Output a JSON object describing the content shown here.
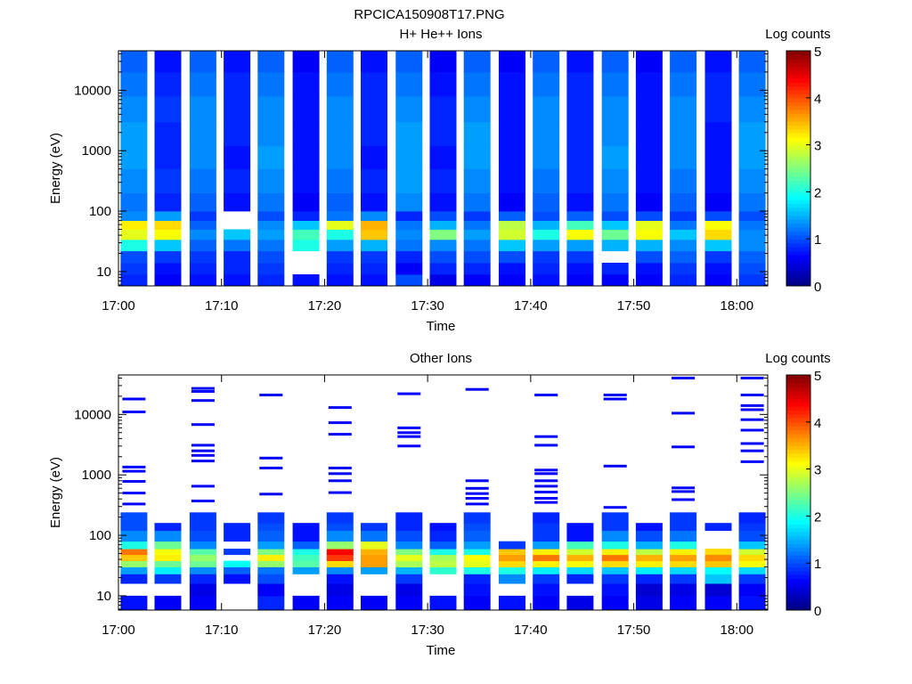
{
  "figure": {
    "title": "RPCICA150908T17.PNG",
    "colors": {
      "empty": "#ffffff",
      "axis": "#000000"
    }
  },
  "chart_data": [
    {
      "type": "heatmap",
      "title": "H+ He++ Ions",
      "xlabel": "Time",
      "ylabel": "Energy (eV)",
      "colorbar_label": "Log counts",
      "x_ticks": [
        "17:00",
        "17:10",
        "17:20",
        "17:30",
        "17:40",
        "17:50",
        "18:00"
      ],
      "x_range_minutes": [
        0,
        63
      ],
      "y_scale": "log",
      "y_range": [
        5.8,
        45000
      ],
      "y_ticks": [
        10,
        100,
        1000,
        10000
      ],
      "y_tick_labels": [
        "10",
        "100",
        "1000",
        "10000"
      ],
      "colorbar_range": [
        0,
        5
      ],
      "colorbar_ticks": [
        "0",
        "1",
        "2",
        "3",
        "4",
        "5"
      ],
      "colormap": "jet",
      "time_columns_minutes": [
        1.5,
        4.8,
        8.2,
        11.5,
        14.8,
        18.2,
        21.5,
        24.8,
        28.2,
        31.5,
        34.8,
        38.2,
        41.5,
        44.8,
        48.2,
        51.5,
        54.8,
        58.2,
        61.5
      ],
      "row_data": [
        {
          "energy_range": [
            5.8,
            9
          ],
          "values": [
            0.8,
            0.6,
            0.7,
            0.7,
            0.8,
            0.7,
            0.7,
            0.7,
            1.0,
            0.5,
            0.6,
            0.6,
            0.7,
            0.6,
            0.6,
            0.6,
            0.8,
            0.6,
            0.9
          ]
        },
        {
          "energy_range": [
            9,
            14
          ],
          "values": [
            0.9,
            0.7,
            0.8,
            0.8,
            0.9,
            null,
            0.8,
            0.8,
            0.6,
            0.8,
            0.8,
            0.7,
            0.8,
            0.7,
            0.8,
            0.7,
            0.9,
            0.7,
            1.0
          ]
        },
        {
          "energy_range": [
            14,
            22
          ],
          "values": [
            1.0,
            0.9,
            0.9,
            0.8,
            1.0,
            null,
            0.9,
            0.9,
            0.8,
            1.0,
            1.0,
            1.0,
            0.9,
            0.9,
            null,
            1.0,
            1.1,
            0.9,
            1.1
          ]
        },
        {
          "energy_range": [
            22,
            34
          ],
          "values": [
            2.0,
            1.6,
            1.1,
            1.2,
            1.2,
            2.0,
            1.4,
            1.5,
            1.2,
            1.3,
            1.2,
            1.6,
            1.4,
            1.4,
            1.5,
            1.5,
            1.3,
            1.6,
            1.3
          ]
        },
        {
          "energy_range": [
            34,
            50
          ],
          "values": [
            3.0,
            3.1,
            1.3,
            1.6,
            1.4,
            2.2,
            2.0,
            3.4,
            1.3,
            2.5,
            1.4,
            2.9,
            2.0,
            3.1,
            2.4,
            3.1,
            1.6,
            3.3,
            1.3
          ]
        },
        {
          "energy_range": [
            50,
            70
          ],
          "values": [
            3.2,
            3.3,
            1.1,
            null,
            1.3,
            1.6,
            3.0,
            3.5,
            1.2,
            1.5,
            1.2,
            2.8,
            1.5,
            2.2,
            1.6,
            3.0,
            1.2,
            3.1,
            1.2
          ]
        },
        {
          "energy_range": [
            70,
            100
          ],
          "values": [
            1.3,
            1.4,
            0.9,
            null,
            1.0,
            0.8,
            1.2,
            1.3,
            0.8,
            1.0,
            0.9,
            1.1,
            1.0,
            1.1,
            1.0,
            1.0,
            0.9,
            1.0,
            1.0
          ]
        },
        {
          "energy_range": [
            100,
            200
          ],
          "values": [
            1.2,
            0.8,
            1.1,
            0.7,
            1.2,
            0.6,
            1.1,
            0.7,
            1.3,
            0.7,
            1.2,
            0.6,
            1.1,
            0.7,
            1.2,
            0.6,
            1.1,
            0.6,
            1.2
          ]
        },
        {
          "energy_range": [
            200,
            500
          ],
          "values": [
            1.3,
            0.9,
            1.2,
            0.8,
            1.3,
            0.7,
            1.2,
            0.8,
            1.4,
            0.8,
            1.3,
            0.7,
            1.2,
            0.8,
            1.3,
            0.7,
            1.2,
            0.7,
            1.3
          ]
        },
        {
          "energy_range": [
            500,
            1200
          ],
          "values": [
            1.4,
            0.8,
            1.3,
            0.7,
            1.4,
            0.7,
            1.3,
            0.7,
            1.4,
            0.7,
            1.4,
            0.7,
            1.3,
            0.8,
            1.4,
            0.7,
            1.3,
            0.7,
            1.4
          ]
        },
        {
          "energy_range": [
            1200,
            3000
          ],
          "values": [
            1.4,
            0.8,
            1.3,
            0.8,
            1.3,
            0.7,
            1.3,
            0.8,
            1.4,
            0.8,
            1.4,
            0.7,
            1.3,
            0.8,
            1.3,
            0.7,
            1.3,
            0.7,
            1.4
          ]
        },
        {
          "energy_range": [
            3000,
            8000
          ],
          "values": [
            1.3,
            0.9,
            1.3,
            0.8,
            1.3,
            0.7,
            1.3,
            0.8,
            1.3,
            0.8,
            1.3,
            0.7,
            1.3,
            0.8,
            1.3,
            0.7,
            1.3,
            0.8,
            1.3
          ]
        },
        {
          "energy_range": [
            8000,
            20000
          ],
          "values": [
            1.2,
            0.8,
            1.2,
            0.8,
            1.2,
            0.7,
            1.2,
            0.8,
            1.2,
            0.7,
            1.2,
            0.7,
            1.2,
            0.8,
            1.2,
            0.7,
            1.2,
            0.8,
            1.2
          ]
        },
        {
          "energy_range": [
            20000,
            45000
          ],
          "values": [
            1.1,
            0.7,
            1.1,
            0.7,
            1.1,
            0.6,
            1.1,
            0.7,
            1.1,
            0.6,
            1.1,
            0.6,
            1.1,
            0.7,
            1.1,
            0.6,
            1.1,
            0.7,
            1.1
          ]
        }
      ]
    },
    {
      "type": "heatmap",
      "title": "Other Ions",
      "xlabel": "Time",
      "ylabel": "Energy (eV)",
      "colorbar_label": "Log counts",
      "x_ticks": [
        "17:00",
        "17:10",
        "17:20",
        "17:30",
        "17:40",
        "17:50",
        "18:00"
      ],
      "x_range_minutes": [
        0,
        63
      ],
      "y_scale": "log",
      "y_range": [
        5.8,
        45000
      ],
      "y_ticks": [
        10,
        100,
        1000,
        10000
      ],
      "y_tick_labels": [
        "10",
        "100",
        "1000",
        "10000"
      ],
      "colorbar_range": [
        0,
        5
      ],
      "colorbar_ticks": [
        "0",
        "1",
        "2",
        "3",
        "4",
        "5"
      ],
      "colormap": "jet",
      "time_columns_minutes": [
        1.5,
        4.8,
        8.2,
        11.5,
        14.8,
        18.2,
        21.5,
        24.8,
        28.2,
        31.5,
        34.8,
        38.2,
        41.5,
        44.8,
        48.2,
        51.5,
        54.8,
        58.2,
        61.5
      ],
      "row_data": [
        {
          "energy_range": [
            5.8,
            10
          ],
          "values": [
            0.7,
            0.6,
            0.6,
            null,
            0.8,
            0.6,
            0.6,
            0.6,
            0.6,
            0.7,
            0.6,
            0.7,
            0.6,
            0.5,
            0.6,
            0.5,
            0.6,
            0.6,
            0.7
          ]
        },
        {
          "energy_range": [
            10,
            16
          ],
          "values": [
            null,
            null,
            0.5,
            null,
            0.6,
            null,
            0.5,
            null,
            0.5,
            null,
            0.7,
            null,
            0.7,
            null,
            0.7,
            0.4,
            0.5,
            0.4,
            0.6
          ]
        },
        {
          "energy_range": [
            16,
            23
          ],
          "values": [
            0.8,
            0.9,
            0.8,
            0.7,
            1.0,
            null,
            0.7,
            null,
            0.9,
            null,
            0.8,
            1.3,
            0.9,
            0.8,
            0.9,
            0.8,
            0.9,
            1.6,
            0.9
          ]
        },
        {
          "energy_range": [
            23,
            30
          ],
          "values": [
            1.4,
            1.8,
            1.3,
            1.1,
            1.2,
            1.4,
            1.3,
            1.4,
            1.5,
            2.1,
            2.0,
            2.0,
            1.8,
            1.7,
            1.6,
            1.8,
            1.7,
            1.9,
            1.7
          ]
        },
        {
          "energy_range": [
            30,
            38
          ],
          "values": [
            2.6,
            2.4,
            2.4,
            1.9,
            2.6,
            2.3,
            3.3,
            3.6,
            2.7,
            2.8,
            3.0,
            3.3,
            3.2,
            3.1,
            3.3,
            3.2,
            3.3,
            3.4,
            3.1
          ]
        },
        {
          "energy_range": [
            38,
            48
          ],
          "values": [
            3.4,
            3.2,
            2.6,
            null,
            3.2,
            2.2,
            4.1,
            3.6,
            3.0,
            2.7,
            3.1,
            3.6,
            3.8,
            3.5,
            3.8,
            3.5,
            3.6,
            3.7,
            3.3
          ]
        },
        {
          "energy_range": [
            48,
            60
          ],
          "values": [
            3.8,
            3.1,
            2.3,
            0.9,
            2.5,
            2.0,
            4.4,
            3.5,
            2.5,
            2.0,
            2.0,
            3.4,
            3.2,
            2.9,
            3.2,
            2.8,
            3.2,
            3.3,
            2.9
          ]
        },
        {
          "energy_range": [
            60,
            80
          ],
          "values": [
            2.0,
            2.4,
            1.3,
            null,
            1.4,
            1.1,
            2.6,
            3.0,
            1.3,
            1.1,
            1.4,
            0.9,
            1.4,
            2.2,
            2.0,
            1.5,
            2.0,
            null,
            1.6
          ]
        },
        {
          "energy_range": [
            80,
            120
          ],
          "values": [
            1.3,
            1.3,
            1.0,
            0.8,
            1.1,
            0.7,
            1.3,
            1.2,
            1.0,
            0.8,
            1.1,
            null,
            0.9,
            0.7,
            1.3,
            1.0,
            1.2,
            null,
            1.0
          ]
        },
        {
          "energy_range": [
            120,
            160
          ],
          "values": [
            1.0,
            0.8,
            0.9,
            0.8,
            1.0,
            0.7,
            1.0,
            0.9,
            0.8,
            0.7,
            1.0,
            null,
            0.9,
            0.7,
            0.9,
            0.7,
            0.9,
            0.8,
            0.9
          ]
        },
        {
          "energy_range": [
            160,
            240
          ],
          "values": [
            1.0,
            null,
            0.9,
            null,
            0.9,
            null,
            0.9,
            null,
            0.8,
            null,
            0.9,
            null,
            0.8,
            null,
            0.9,
            null,
            0.9,
            null,
            0.8
          ]
        }
      ],
      "line_data": [
        {
          "time_minute": 1.5,
          "energies": [
            18000,
            11000,
            1350,
            1150,
            780,
            500,
            330
          ]
        },
        {
          "time_minute": 8.2,
          "energies": [
            27000,
            24000,
            17000,
            6800,
            3100,
            2500,
            2100,
            1700,
            650,
            370
          ]
        },
        {
          "time_minute": 14.8,
          "energies": [
            21000,
            1900,
            1300,
            480
          ]
        },
        {
          "time_minute": 21.5,
          "energies": [
            13000,
            7300,
            4700,
            1300,
            1050,
            800,
            510
          ]
        },
        {
          "time_minute": 28.2,
          "energies": [
            22000,
            6000,
            5000,
            4300,
            3000
          ]
        },
        {
          "time_minute": 34.8,
          "energies": [
            26000,
            800,
            600,
            490,
            410,
            330
          ]
        },
        {
          "time_minute": 41.5,
          "energies": [
            21000,
            4300,
            3100,
            1200,
            1050,
            800,
            650,
            520,
            410,
            350
          ]
        },
        {
          "time_minute": 48.2,
          "energies": [
            21000,
            18000,
            1400,
            290
          ]
        },
        {
          "time_minute": 54.8,
          "energies": [
            40000,
            10500,
            2900,
            610,
            530,
            390
          ]
        },
        {
          "time_minute": 61.5,
          "energies": [
            40000,
            21000,
            14000,
            12000,
            8200,
            5500,
            3300,
            2500,
            1650
          ]
        }
      ]
    }
  ]
}
